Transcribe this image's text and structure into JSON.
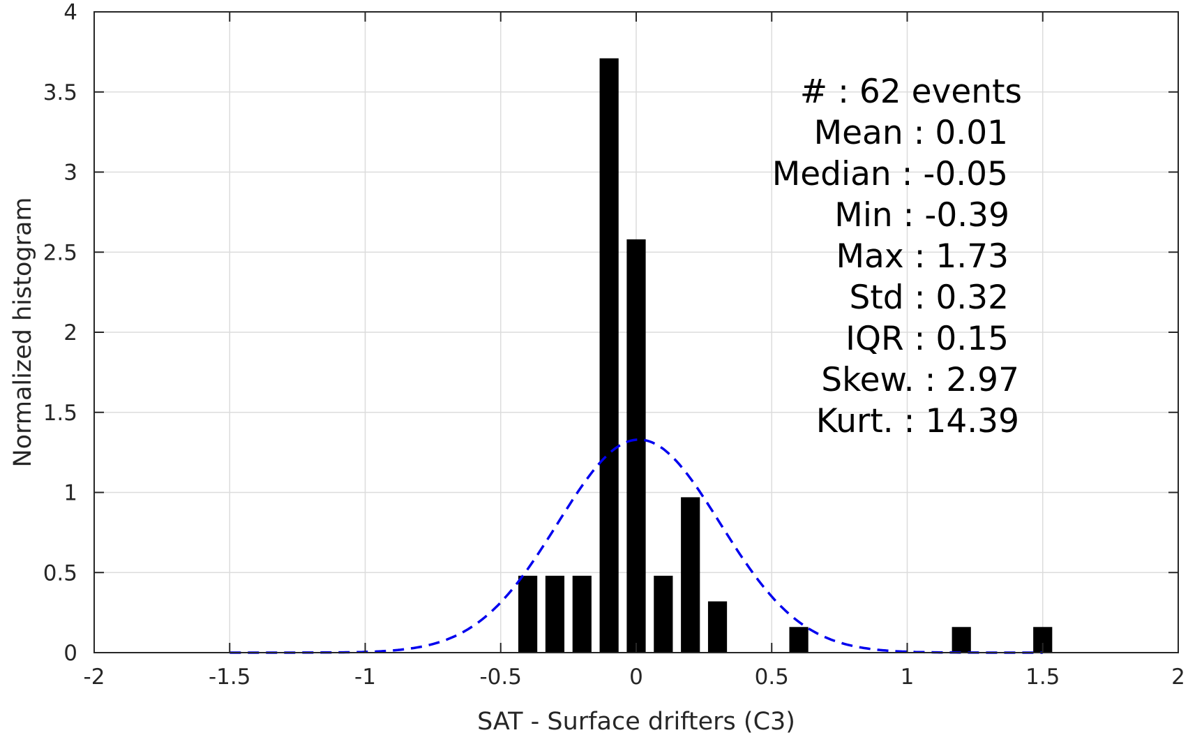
{
  "chart_data": {
    "type": "bar",
    "xlabel": "SAT - Surface drifters (C3)",
    "ylabel": "Normalized histogram",
    "xlim": [
      -2,
      2
    ],
    "ylim": [
      0,
      4
    ],
    "grid": true,
    "x_ticks": [
      -2,
      -1.5,
      -1,
      -0.5,
      0,
      0.5,
      1,
      1.5,
      2
    ],
    "x_tick_labels": [
      "-2",
      "-1.5",
      "-1",
      "-0.5",
      "0",
      "0.5",
      "1",
      "1.5",
      "2"
    ],
    "y_ticks": [
      0,
      0.5,
      1,
      1.5,
      2,
      2.5,
      3,
      3.5,
      4
    ],
    "y_tick_labels": [
      "0",
      "0.5",
      "1",
      "1.5",
      "2",
      "2.5",
      "3",
      "3.5",
      "4"
    ],
    "bar_width": 0.07,
    "bar_color": "#000000",
    "bars": [
      {
        "x": -0.4,
        "value": 0.48
      },
      {
        "x": -0.3,
        "value": 0.48
      },
      {
        "x": -0.2,
        "value": 0.48
      },
      {
        "x": -0.1,
        "value": 3.71
      },
      {
        "x": 0.0,
        "value": 2.58
      },
      {
        "x": 0.1,
        "value": 0.48
      },
      {
        "x": 0.2,
        "value": 0.97
      },
      {
        "x": 0.3,
        "value": 0.32
      },
      {
        "x": 0.6,
        "value": 0.16
      },
      {
        "x": 1.2,
        "value": 0.16
      },
      {
        "x": 1.5,
        "value": 0.16
      }
    ],
    "fit_curve": {
      "type": "gaussian-dashed",
      "color": "#0000ee",
      "mean": 0.01,
      "std": 0.3,
      "x_range": [
        -1.5,
        1.5
      ]
    },
    "stats": [
      "#  : 62 events",
      "Mean : 0.01",
      "Median : -0.05",
      "Min : -0.39",
      "Max : 1.73",
      "Std : 0.32",
      "IQR : 0.15",
      "Skew. : 2.97",
      "Kurt. : 14.39"
    ]
  }
}
